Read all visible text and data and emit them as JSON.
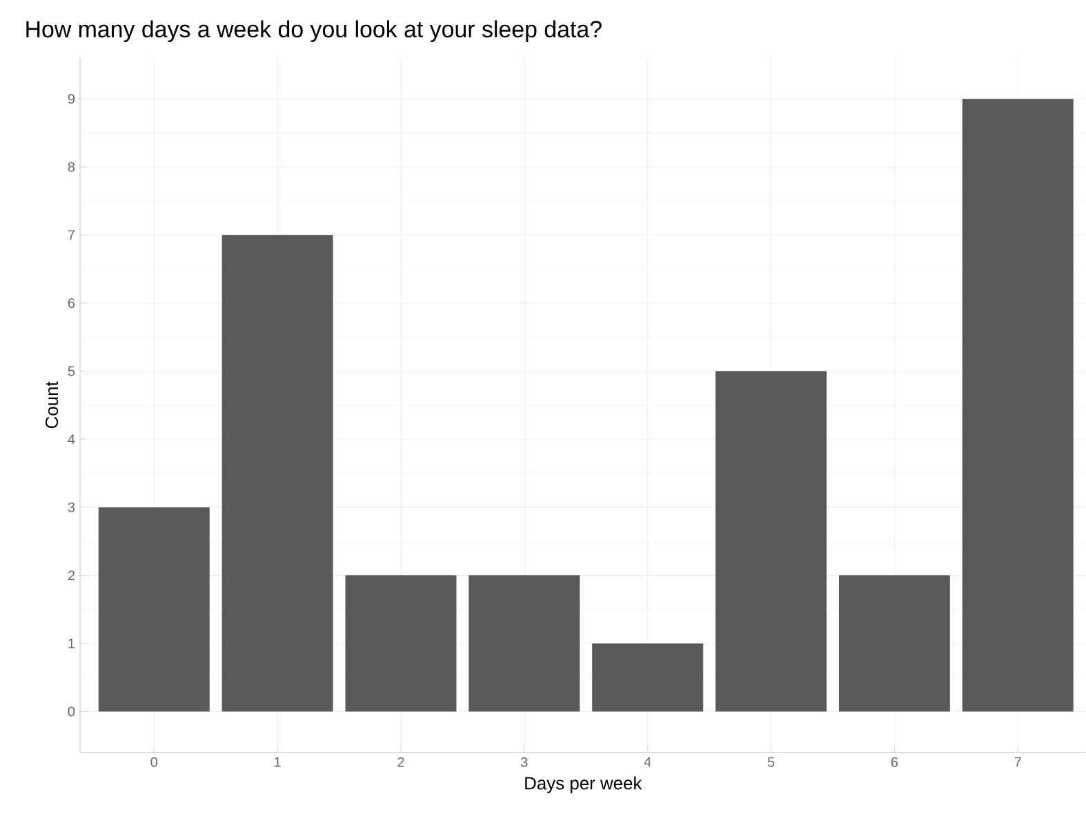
{
  "chart_data": {
    "type": "bar",
    "title": "How many days a week do you look at your sleep data?",
    "xlabel": "Days per week",
    "ylabel": "Count",
    "categories": [
      "0",
      "1",
      "2",
      "3",
      "4",
      "5",
      "6",
      "7"
    ],
    "values": [
      3,
      7,
      2,
      2,
      1,
      5,
      2,
      9
    ],
    "color": "#595959",
    "ylim": [
      -0.6,
      9.6
    ],
    "yticks": [
      0,
      1,
      2,
      3,
      4,
      5,
      6,
      7,
      8,
      9
    ],
    "grid": true
  }
}
